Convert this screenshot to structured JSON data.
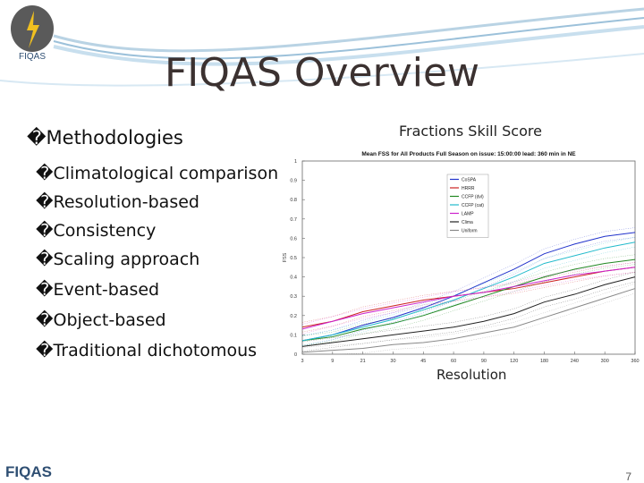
{
  "slide": {
    "title": "FIQAS Overview",
    "logo_text": "FIQAS",
    "footer_logo": "FIQAS",
    "page_number": "7",
    "main_bullet": "�Methodologies",
    "sub_bullets": [
      "�Climatological comparison",
      "�Resolution-based",
      "�Consistency",
      "�Scaling approach",
      "�Event-based",
      "�Object-based",
      "�Traditional dichotomous"
    ],
    "chart_heading": "Fractions Skill Score",
    "chart_xcaption": "Resolution"
  },
  "chart_data": {
    "type": "line",
    "title": "Mean FSS for All Products Full Season on issue: 15:00:00 lead: 360 min in NE",
    "ylabel": "FSS",
    "x": [
      3,
      9,
      21,
      30,
      45,
      60,
      90,
      120,
      180,
      240,
      300,
      360
    ],
    "x_ticks": [
      "3",
      "9",
      "21",
      "30",
      "45",
      "60",
      "90",
      "120",
      "180",
      "240",
      "300",
      "360"
    ],
    "ylim": [
      0,
      1
    ],
    "y_ticks": [
      "0",
      "0.1",
      "0.2",
      "0.3",
      "0.4",
      "0.5",
      "0.6",
      "0.7",
      "0.8",
      "0.9",
      "1"
    ],
    "legend_position": "top-left",
    "series": [
      {
        "name": "CoSPA",
        "color": "#2233cc",
        "values": [
          0.07,
          0.1,
          0.15,
          0.19,
          0.24,
          0.3,
          0.37,
          0.44,
          0.52,
          0.57,
          0.61,
          0.63
        ]
      },
      {
        "name": "HRRR",
        "color": "#cc2222",
        "values": [
          0.14,
          0.17,
          0.22,
          0.25,
          0.28,
          0.3,
          0.32,
          0.34,
          0.37,
          0.4,
          0.43,
          0.45
        ]
      },
      {
        "name": "CCFP (dvl)",
        "color": "#228822",
        "values": [
          0.07,
          0.09,
          0.13,
          0.16,
          0.2,
          0.25,
          0.3,
          0.35,
          0.4,
          0.44,
          0.47,
          0.49
        ]
      },
      {
        "name": "CCFP (cat)",
        "color": "#22bbcc",
        "values": [
          0.07,
          0.1,
          0.14,
          0.18,
          0.23,
          0.28,
          0.34,
          0.4,
          0.47,
          0.51,
          0.55,
          0.58
        ]
      },
      {
        "name": "LAMP",
        "color": "#cc22cc",
        "values": [
          0.13,
          0.17,
          0.21,
          0.24,
          0.27,
          0.3,
          0.32,
          0.35,
          0.38,
          0.41,
          0.43,
          0.45
        ]
      },
      {
        "name": "Clima",
        "color": "#222222",
        "values": [
          0.04,
          0.06,
          0.08,
          0.1,
          0.12,
          0.14,
          0.17,
          0.21,
          0.27,
          0.31,
          0.36,
          0.4
        ]
      },
      {
        "name": "Uniform",
        "color": "#888888",
        "values": [
          0.01,
          0.02,
          0.03,
          0.05,
          0.06,
          0.08,
          0.11,
          0.14,
          0.19,
          0.24,
          0.29,
          0.34
        ]
      }
    ]
  }
}
